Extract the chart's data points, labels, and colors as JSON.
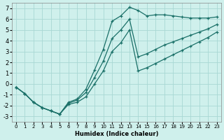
{
  "xlabel": "Humidex (Indice chaleur)",
  "bg_color": "#cff0ec",
  "grid_color": "#a8d8d4",
  "line_color": "#1a7068",
  "xlim": [
    -0.5,
    23.5
  ],
  "ylim": [
    -3.5,
    7.5
  ],
  "xticks": [
    0,
    1,
    2,
    3,
    4,
    5,
    6,
    7,
    8,
    9,
    10,
    11,
    12,
    13,
    14,
    15,
    16,
    17,
    18,
    19,
    20,
    21,
    22,
    23
  ],
  "yticks": [
    -3,
    -2,
    -1,
    0,
    1,
    2,
    3,
    4,
    5,
    6,
    7
  ],
  "line1_x": [
    0,
    1,
    2,
    3,
    4,
    5,
    6,
    7,
    8,
    9,
    10,
    11,
    12,
    13,
    14,
    15,
    16,
    17,
    18,
    19,
    20,
    21,
    22,
    23
  ],
  "line1_y": [
    -0.3,
    -0.9,
    -1.7,
    -2.2,
    -2.5,
    -2.8,
    -1.7,
    -1.4,
    -0.5,
    1.3,
    3.2,
    5.8,
    6.3,
    7.1,
    6.8,
    6.3,
    6.4,
    6.4,
    6.3,
    6.2,
    6.1,
    6.1,
    6.1,
    6.2
  ],
  "line2_x": [
    0,
    1,
    2,
    3,
    4,
    5,
    6,
    7,
    8,
    9,
    10,
    11,
    12,
    13,
    14,
    15,
    16,
    17,
    18,
    19,
    20,
    21,
    22,
    23
  ],
  "line2_y": [
    -0.3,
    -0.9,
    -1.7,
    -2.2,
    -2.5,
    -2.8,
    -1.8,
    -1.5,
    -0.8,
    0.6,
    2.1,
    4.2,
    5.0,
    6.0,
    2.5,
    2.8,
    3.2,
    3.6,
    3.9,
    4.2,
    4.5,
    4.8,
    5.1,
    5.5
  ],
  "line3_x": [
    0,
    1,
    2,
    3,
    4,
    5,
    6,
    7,
    8,
    9,
    10,
    11,
    12,
    13,
    14,
    15,
    16,
    17,
    18,
    19,
    20,
    21,
    22,
    23
  ],
  "line3_y": [
    -0.3,
    -0.9,
    -1.7,
    -2.2,
    -2.5,
    -2.8,
    -1.9,
    -1.7,
    -1.2,
    0.0,
    1.2,
    3.0,
    3.8,
    5.0,
    1.2,
    1.5,
    1.9,
    2.3,
    2.7,
    3.1,
    3.5,
    3.9,
    4.3,
    4.8
  ]
}
